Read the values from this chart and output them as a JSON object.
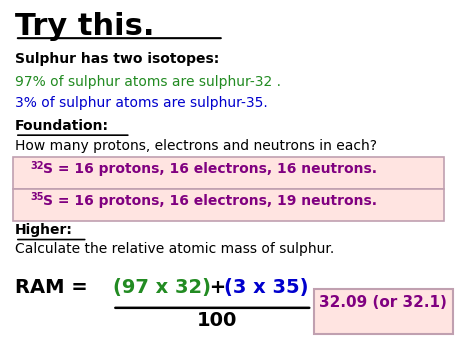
{
  "bg_color": "#ffffff",
  "title": "Try this.",
  "title_color": "#000000",
  "title_fontsize": 22,
  "line1_bold": "Sulphur has two isotopes:",
  "line1_color": "#000000",
  "line2": "97% of sulphur atoms are sulphur-32 .",
  "line2_color": "#228B22",
  "line3": "3% of sulphur atoms are sulphur-35.",
  "line3_color": "#0000CD",
  "foundation_label": "Foundation:",
  "foundation_color": "#000000",
  "question": "How many protons, electrons and neutrons in each?",
  "question_color": "#000000",
  "box1_color": "#800080",
  "box1_bg": "#FFE4E1",
  "box1_sup": "32",
  "box1_main": "S = 16 protons, 16 electrons, 16 neutrons.",
  "box2_color": "#800080",
  "box2_bg": "#FFE4E1",
  "box2_sup": "35",
  "box2_main": "S = 16 protons, 16 electrons, 19 neutrons.",
  "higher_label": "Higher:",
  "higher_color": "#000000",
  "calc_line": "Calculate the relative atomic mass of sulphur.",
  "calc_color": "#000000",
  "ram_prefix": "RAM = ",
  "ram_prefix_color": "#000000",
  "ram_numerator_green": "(97 x 32)",
  "ram_numerator_green_color": "#228B22",
  "ram_plus": " + ",
  "ram_plus_color": "#000000",
  "ram_numerator_blue": "(3 x 35)",
  "ram_numerator_blue_color": "#0000CD",
  "ram_denominator": "100",
  "ram_denom_color": "#000000",
  "answer_text": "32.09 (or 32.1)",
  "answer_color": "#800080",
  "answer_bg": "#FFE4E1",
  "box_border_color": "#c0a0b0"
}
